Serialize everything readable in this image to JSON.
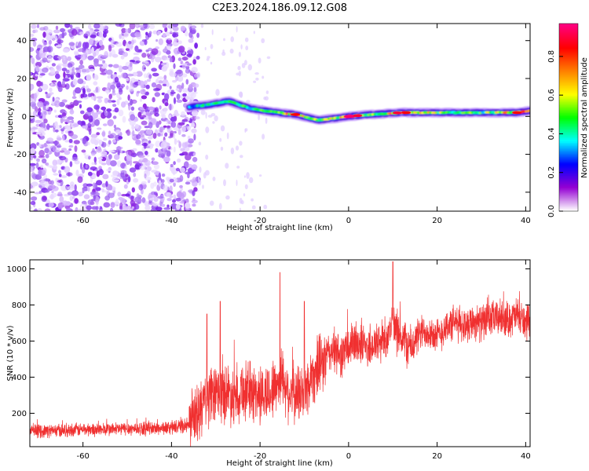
{
  "title": "C2E3.2024.186.09.12.G08",
  "chart_data": [
    {
      "type": "heatmap",
      "xlabel": "Height of straight line (km)",
      "ylabel": "Frequency (Hz)",
      "xlim": [
        -72,
        41
      ],
      "ylim": [
        -50,
        49
      ],
      "x_ticks": [
        -60,
        -40,
        -20,
        0,
        20,
        40
      ],
      "y_ticks": [
        -40,
        -20,
        0,
        20,
        40
      ],
      "grid": false,
      "description_of_content": "Speckled low-amplitude purple noise for heights below about -35 km; a narrow high-amplitude band near 0 Hz from about -35 km to 41 km, rising to ~8 Hz near -27 km and dipping to ~-2 Hz near -7 km",
      "ridge": [
        {
          "x": -36,
          "y": 5,
          "amp": 0.35
        },
        {
          "x": -32,
          "y": 6,
          "amp": 0.45
        },
        {
          "x": -27,
          "y": 8,
          "amp": 0.5
        },
        {
          "x": -22,
          "y": 4,
          "amp": 0.45
        },
        {
          "x": -16,
          "y": 2,
          "amp": 0.6
        },
        {
          "x": -12,
          "y": 1,
          "amp": 0.75
        },
        {
          "x": -7,
          "y": -2,
          "amp": 0.6
        },
        {
          "x": -3,
          "y": -1,
          "amp": 0.6
        },
        {
          "x": 0,
          "y": 0,
          "amp": 0.9
        },
        {
          "x": 5,
          "y": 1,
          "amp": 0.55
        },
        {
          "x": 12,
          "y": 2,
          "amp": 0.8
        },
        {
          "x": 20,
          "y": 2,
          "amp": 0.55
        },
        {
          "x": 30,
          "y": 2,
          "amp": 0.5
        },
        {
          "x": 38,
          "y": 2,
          "amp": 0.8
        },
        {
          "x": 41,
          "y": 3,
          "amp": 0.7
        }
      ],
      "colorbar": {
        "label": "Normalized spectral amplitude",
        "range": [
          0.0,
          0.97
        ],
        "ticks": [
          "0.0",
          "0.2",
          "0.4",
          "0.6",
          "0.8"
        ],
        "tick_values": [
          0.0,
          0.2,
          0.4,
          0.6,
          0.8
        ],
        "colors": [
          "#ffffff",
          "#9400d3",
          "#0000ff",
          "#00ffff",
          "#00ff00",
          "#ffff00",
          "#ff8000",
          "#ff0000",
          "#ff0080"
        ]
      }
    },
    {
      "type": "line",
      "xlabel": "Height of straight line (km)",
      "ylabel": "SNR (10 * v/v)",
      "xlim": [
        -72,
        41
      ],
      "ylim": [
        15,
        1050
      ],
      "x_ticks": [
        -60,
        -40,
        -20,
        0,
        20,
        40
      ],
      "y_ticks": [
        200,
        400,
        600,
        800,
        1000
      ],
      "grid": false,
      "color": "#f03030",
      "series": [
        {
          "x": [
            -72,
            -65,
            -60,
            -55,
            -50,
            -45,
            -40,
            -36,
            -34,
            -32,
            -30,
            -28,
            -26,
            -24,
            -22,
            -20,
            -18,
            -16,
            -15,
            -14,
            -12,
            -10,
            -8,
            -6,
            -4,
            -2,
            0,
            2,
            4,
            6,
            8,
            10,
            12,
            14,
            16,
            18,
            20,
            22,
            24,
            26,
            28,
            30,
            32,
            34,
            36,
            38,
            40,
            41
          ],
          "y": [
            100,
            105,
            110,
            110,
            115,
            115,
            120,
            135,
            200,
            280,
            300,
            320,
            300,
            330,
            320,
            300,
            310,
            370,
            420,
            330,
            300,
            320,
            420,
            470,
            550,
            520,
            560,
            600,
            570,
            580,
            610,
            680,
            620,
            560,
            640,
            660,
            620,
            680,
            700,
            690,
            710,
            700,
            720,
            730,
            720,
            740,
            700,
            680
          ]
        }
      ],
      "spikes": [
        {
          "x": -32,
          "y": 750
        },
        {
          "x": -29,
          "y": 820
        },
        {
          "x": -15.5,
          "y": 980
        },
        {
          "x": -10,
          "y": 820
        },
        {
          "x": 10,
          "y": 1040
        }
      ]
    }
  ]
}
